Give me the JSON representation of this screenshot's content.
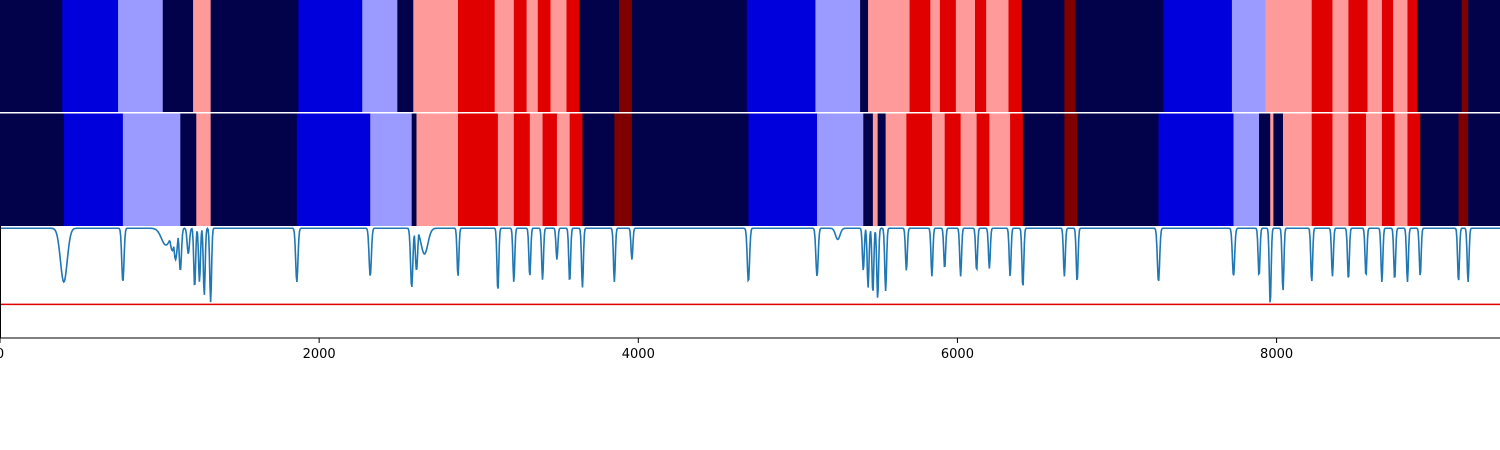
{
  "chart_data": {
    "type": "heatmap",
    "x_range": [
      0,
      9400
    ],
    "x_ticks": [
      0,
      2000,
      4000,
      6000,
      8000
    ],
    "x_tick_labels": [
      "0",
      "2000",
      "4000",
      "6000",
      "8000"
    ],
    "state_colors": {
      "0": "#02024a",
      "1": "#0000dc",
      "2": "#9a9aff",
      "3": "#ff9a9a",
      "4": "#e00000",
      "5": "#800000"
    },
    "rows": [
      {
        "segments": [
          [
            0,
            390,
            0
          ],
          [
            390,
            740,
            1
          ],
          [
            740,
            1020,
            2
          ],
          [
            1020,
            1210,
            0
          ],
          [
            1210,
            1320,
            3
          ],
          [
            1320,
            1870,
            0
          ],
          [
            1870,
            2270,
            1
          ],
          [
            2270,
            2490,
            2
          ],
          [
            2490,
            2590,
            0
          ],
          [
            2590,
            2870,
            3
          ],
          [
            2870,
            3100,
            4
          ],
          [
            3100,
            3220,
            3
          ],
          [
            3220,
            3300,
            4
          ],
          [
            3300,
            3370,
            3
          ],
          [
            3370,
            3450,
            4
          ],
          [
            3450,
            3550,
            3
          ],
          [
            3550,
            3630,
            4
          ],
          [
            3630,
            3880,
            0
          ],
          [
            3880,
            3960,
            5
          ],
          [
            3960,
            4680,
            0
          ],
          [
            4680,
            5110,
            1
          ],
          [
            5110,
            5390,
            2
          ],
          [
            5390,
            5440,
            0
          ],
          [
            5440,
            5700,
            3
          ],
          [
            5700,
            5830,
            4
          ],
          [
            5830,
            5890,
            3
          ],
          [
            5890,
            5990,
            4
          ],
          [
            5990,
            6110,
            3
          ],
          [
            6110,
            6180,
            4
          ],
          [
            6180,
            6320,
            3
          ],
          [
            6320,
            6400,
            4
          ],
          [
            6400,
            6670,
            0
          ],
          [
            6670,
            6740,
            5
          ],
          [
            6740,
            7290,
            0
          ],
          [
            7290,
            7720,
            1
          ],
          [
            7720,
            7930,
            2
          ],
          [
            7930,
            8220,
            3
          ],
          [
            8220,
            8350,
            4
          ],
          [
            8350,
            8450,
            3
          ],
          [
            8450,
            8570,
            4
          ],
          [
            8570,
            8660,
            3
          ],
          [
            8660,
            8730,
            4
          ],
          [
            8730,
            8820,
            3
          ],
          [
            8820,
            8880,
            4
          ],
          [
            8880,
            9160,
            0
          ],
          [
            9160,
            9200,
            5
          ],
          [
            9200,
            9400,
            0
          ]
        ]
      },
      {
        "segments": [
          [
            0,
            400,
            0
          ],
          [
            400,
            770,
            1
          ],
          [
            770,
            1130,
            2
          ],
          [
            1130,
            1230,
            0
          ],
          [
            1230,
            1320,
            3
          ],
          [
            1320,
            1860,
            0
          ],
          [
            1860,
            2320,
            1
          ],
          [
            2320,
            2580,
            2
          ],
          [
            2580,
            2610,
            0
          ],
          [
            2610,
            2870,
            3
          ],
          [
            2870,
            3120,
            4
          ],
          [
            3120,
            3220,
            3
          ],
          [
            3220,
            3320,
            4
          ],
          [
            3320,
            3400,
            3
          ],
          [
            3400,
            3490,
            4
          ],
          [
            3490,
            3570,
            3
          ],
          [
            3570,
            3650,
            4
          ],
          [
            3650,
            3850,
            0
          ],
          [
            3850,
            3960,
            5
          ],
          [
            3960,
            4690,
            0
          ],
          [
            4690,
            5120,
            1
          ],
          [
            5120,
            5410,
            2
          ],
          [
            5410,
            5470,
            0
          ],
          [
            5470,
            5500,
            3
          ],
          [
            5500,
            5550,
            0
          ],
          [
            5550,
            5680,
            3
          ],
          [
            5680,
            5840,
            4
          ],
          [
            5840,
            5920,
            3
          ],
          [
            5920,
            6020,
            4
          ],
          [
            6020,
            6120,
            3
          ],
          [
            6120,
            6200,
            4
          ],
          [
            6200,
            6330,
            3
          ],
          [
            6330,
            6410,
            4
          ],
          [
            6410,
            6670,
            0
          ],
          [
            6670,
            6750,
            5
          ],
          [
            6750,
            7260,
            0
          ],
          [
            7260,
            7730,
            1
          ],
          [
            7730,
            7890,
            2
          ],
          [
            7890,
            7960,
            0
          ],
          [
            7960,
            7980,
            3
          ],
          [
            7980,
            8040,
            0
          ],
          [
            8040,
            8220,
            3
          ],
          [
            8220,
            8350,
            4
          ],
          [
            8350,
            8450,
            3
          ],
          [
            8450,
            8560,
            4
          ],
          [
            8560,
            8660,
            3
          ],
          [
            8660,
            8740,
            4
          ],
          [
            8740,
            8820,
            3
          ],
          [
            8820,
            8900,
            4
          ],
          [
            8900,
            9140,
            0
          ],
          [
            9140,
            9200,
            5
          ],
          [
            9200,
            9400,
            0
          ]
        ]
      }
    ],
    "line": {
      "color": "#1f77b4",
      "ylim": [
        0,
        1
      ],
      "baseline": 0.98,
      "threshold": 0.3,
      "threshold_color": "#e00000",
      "dips": [
        [
          400,
          0.5,
          30
        ],
        [
          770,
          0.5,
          10
        ],
        [
          1040,
          0.83,
          40
        ],
        [
          1080,
          0.78,
          20
        ],
        [
          1100,
          0.7,
          15
        ],
        [
          1130,
          0.6,
          10
        ],
        [
          1180,
          0.75,
          10
        ],
        [
          1220,
          0.45,
          8
        ],
        [
          1250,
          0.5,
          8
        ],
        [
          1280,
          0.38,
          8
        ],
        [
          1320,
          0.32,
          8
        ],
        [
          1860,
          0.5,
          10
        ],
        [
          2320,
          0.55,
          10
        ],
        [
          2580,
          0.45,
          10
        ],
        [
          2610,
          0.6,
          10
        ],
        [
          2660,
          0.75,
          30
        ],
        [
          2870,
          0.55,
          8
        ],
        [
          3120,
          0.42,
          8
        ],
        [
          3220,
          0.5,
          8
        ],
        [
          3320,
          0.55,
          8
        ],
        [
          3400,
          0.52,
          8
        ],
        [
          3490,
          0.7,
          8
        ],
        [
          3570,
          0.5,
          8
        ],
        [
          3650,
          0.45,
          8
        ],
        [
          3850,
          0.5,
          8
        ],
        [
          3960,
          0.7,
          8
        ],
        [
          4690,
          0.5,
          10
        ],
        [
          5120,
          0.55,
          10
        ],
        [
          5250,
          0.88,
          20
        ],
        [
          5410,
          0.6,
          8
        ],
        [
          5440,
          0.45,
          8
        ],
        [
          5470,
          0.4,
          8
        ],
        [
          5500,
          0.35,
          8
        ],
        [
          5550,
          0.42,
          8
        ],
        [
          5680,
          0.6,
          8
        ],
        [
          5840,
          0.55,
          8
        ],
        [
          5920,
          0.62,
          8
        ],
        [
          6020,
          0.55,
          8
        ],
        [
          6120,
          0.6,
          8
        ],
        [
          6200,
          0.62,
          8
        ],
        [
          6330,
          0.55,
          8
        ],
        [
          6410,
          0.45,
          8
        ],
        [
          6670,
          0.55,
          8
        ],
        [
          6750,
          0.5,
          8
        ],
        [
          7260,
          0.5,
          10
        ],
        [
          7730,
          0.55,
          10
        ],
        [
          7890,
          0.55,
          8
        ],
        [
          7960,
          0.3,
          8
        ],
        [
          8040,
          0.42,
          8
        ],
        [
          8220,
          0.5,
          8
        ],
        [
          8350,
          0.55,
          8
        ],
        [
          8450,
          0.52,
          8
        ],
        [
          8560,
          0.55,
          8
        ],
        [
          8660,
          0.5,
          8
        ],
        [
          8740,
          0.52,
          8
        ],
        [
          8820,
          0.5,
          8
        ],
        [
          8900,
          0.55,
          8
        ],
        [
          9140,
          0.5,
          8
        ],
        [
          9200,
          0.5,
          8
        ]
      ]
    },
    "grid": false,
    "legend": "none"
  }
}
